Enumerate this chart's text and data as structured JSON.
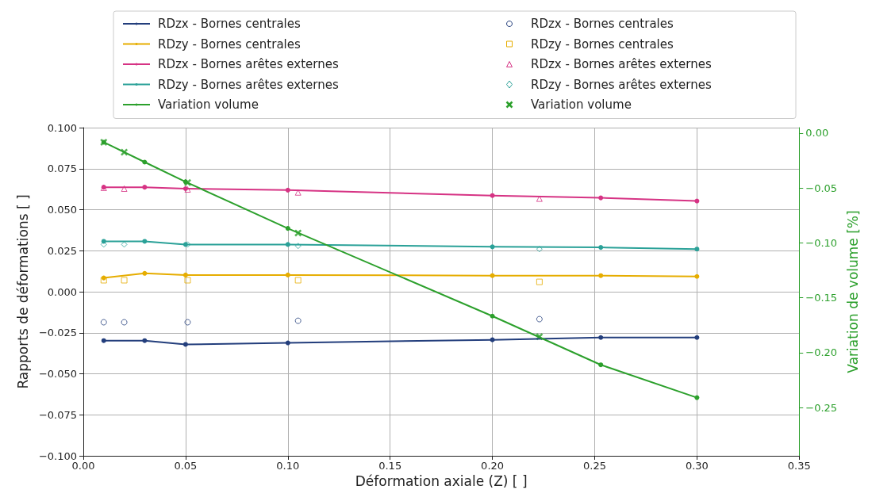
{
  "chart_data": {
    "type": "line",
    "xlabel": "Déformation axiale (Z) [ ]",
    "ylabel": "Rapports de déformations [ ]",
    "y2label": "Variation de volume [%]",
    "xlim": [
      0,
      0.35
    ],
    "xticks": [
      {
        "value": 0,
        "label": "0.00"
      },
      {
        "value": 0.05,
        "label": "0.05"
      },
      {
        "value": 0.1,
        "label": "0.10"
      },
      {
        "value": 0.15,
        "label": "0.15"
      },
      {
        "value": 0.2,
        "label": "0.20"
      },
      {
        "value": 0.25,
        "label": "0.25"
      },
      {
        "value": 0.3,
        "label": "0.30"
      },
      {
        "value": 0.35,
        "label": "0.35"
      }
    ],
    "ylim": [
      -0.1,
      0.1
    ],
    "yticks": [
      {
        "value": -0.1,
        "label": "−0.100"
      },
      {
        "value": -0.075,
        "label": "−0.075"
      },
      {
        "value": -0.05,
        "label": "−0.050"
      },
      {
        "value": -0.025,
        "label": "−0.025"
      },
      {
        "value": 0,
        "label": "0.000"
      },
      {
        "value": 0.025,
        "label": "0.025"
      },
      {
        "value": 0.05,
        "label": "0.050"
      },
      {
        "value": 0.075,
        "label": "0.075"
      },
      {
        "value": 0.1,
        "label": "0.100"
      }
    ],
    "y2lim": [
      -0.294,
      0.005
    ],
    "y2ticks": [
      {
        "value": -0.25,
        "label": "−0.25"
      },
      {
        "value": -0.2,
        "label": "−0.20"
      },
      {
        "value": -0.15,
        "label": "−0.15"
      },
      {
        "value": -0.1,
        "label": "−0.10"
      },
      {
        "value": -0.05,
        "label": "−0.05"
      },
      {
        "value": 0,
        "label": "0.00"
      }
    ],
    "grid": true,
    "legend": "top",
    "line_style": "solid",
    "series": [
      {
        "name": "RDzx - Bornes centrales",
        "type": "line",
        "marker": "circle",
        "color": "#233e7c",
        "x": [
          0.01,
          0.03,
          0.05,
          0.1,
          0.2,
          0.253,
          0.3
        ],
        "values": [
          -0.0298,
          -0.0298,
          -0.0321,
          -0.0312,
          -0.0293,
          -0.0279,
          -0.0279
        ]
      },
      {
        "name": "RDzy - Bornes centrales",
        "type": "line",
        "marker": "circle",
        "color": "#e6ad00",
        "x": [
          0.01,
          0.03,
          0.05,
          0.1,
          0.2,
          0.253,
          0.3
        ],
        "values": [
          0.0084,
          0.0112,
          0.0102,
          0.0102,
          0.0098,
          0.0098,
          0.0093
        ]
      },
      {
        "name": "RDzx - Bornes arêtes externes",
        "type": "line",
        "marker": "circle",
        "color": "#d63384",
        "x": [
          0.01,
          0.03,
          0.05,
          0.1,
          0.2,
          0.253,
          0.3
        ],
        "values": [
          0.0637,
          0.0637,
          0.0628,
          0.0619,
          0.0586,
          0.0572,
          0.0553
        ]
      },
      {
        "name": "RDzy - Bornes arêtes externes",
        "type": "line",
        "marker": "circle",
        "color": "#2aa198",
        "x": [
          0.01,
          0.03,
          0.05,
          0.1,
          0.2,
          0.253,
          0.3
        ],
        "values": [
          0.0307,
          0.0307,
          0.0288,
          0.0288,
          0.0274,
          0.027,
          0.026
        ]
      },
      {
        "name": "Variation volume",
        "type": "line",
        "marker": "circle",
        "axis": "y2",
        "color": "#2ca02c",
        "x": [
          0.01,
          0.03,
          0.05,
          0.1,
          0.2,
          0.253,
          0.3
        ],
        "values": [
          -0.0083,
          -0.0264,
          -0.0444,
          -0.0868,
          -0.1667,
          -0.2111,
          -0.241
        ]
      },
      {
        "name": "RDzx - Bornes centrales",
        "type": "scatter",
        "marker": "circle",
        "color": "#233e7c",
        "x": [
          0.01,
          0.02,
          0.051,
          0.105,
          0.223
        ],
        "values": [
          -0.0186,
          -0.0186,
          -0.0186,
          -0.0177,
          -0.0167
        ]
      },
      {
        "name": "RDzy - Bornes centrales",
        "type": "scatter",
        "marker": "square",
        "color": "#e6ad00",
        "x": [
          0.01,
          0.02,
          0.051,
          0.105,
          0.223
        ],
        "values": [
          0.007,
          0.007,
          0.007,
          0.007,
          0.006
        ]
      },
      {
        "name": "RDzx - Bornes arêtes externes",
        "type": "scatter",
        "marker": "triangle",
        "color": "#d63384",
        "x": [
          0.01,
          0.02,
          0.051,
          0.105,
          0.223
        ],
        "values": [
          0.0633,
          0.0628,
          0.0623,
          0.0605,
          0.0567
        ]
      },
      {
        "name": "RDzy - Bornes arêtes externes",
        "type": "scatter",
        "marker": "diamond",
        "color": "#2aa198",
        "x": [
          0.01,
          0.02,
          0.051,
          0.105,
          0.223
        ],
        "values": [
          0.0288,
          0.0288,
          0.0288,
          0.0279,
          0.026
        ]
      },
      {
        "name": "Variation volume",
        "type": "scatter",
        "marker": "cross",
        "axis": "y2",
        "color": "#2ca02c",
        "x": [
          0.01,
          0.02,
          0.051,
          0.105,
          0.223
        ],
        "values": [
          -0.0083,
          -0.0174,
          -0.0451,
          -0.091,
          -0.1854
        ]
      }
    ]
  }
}
